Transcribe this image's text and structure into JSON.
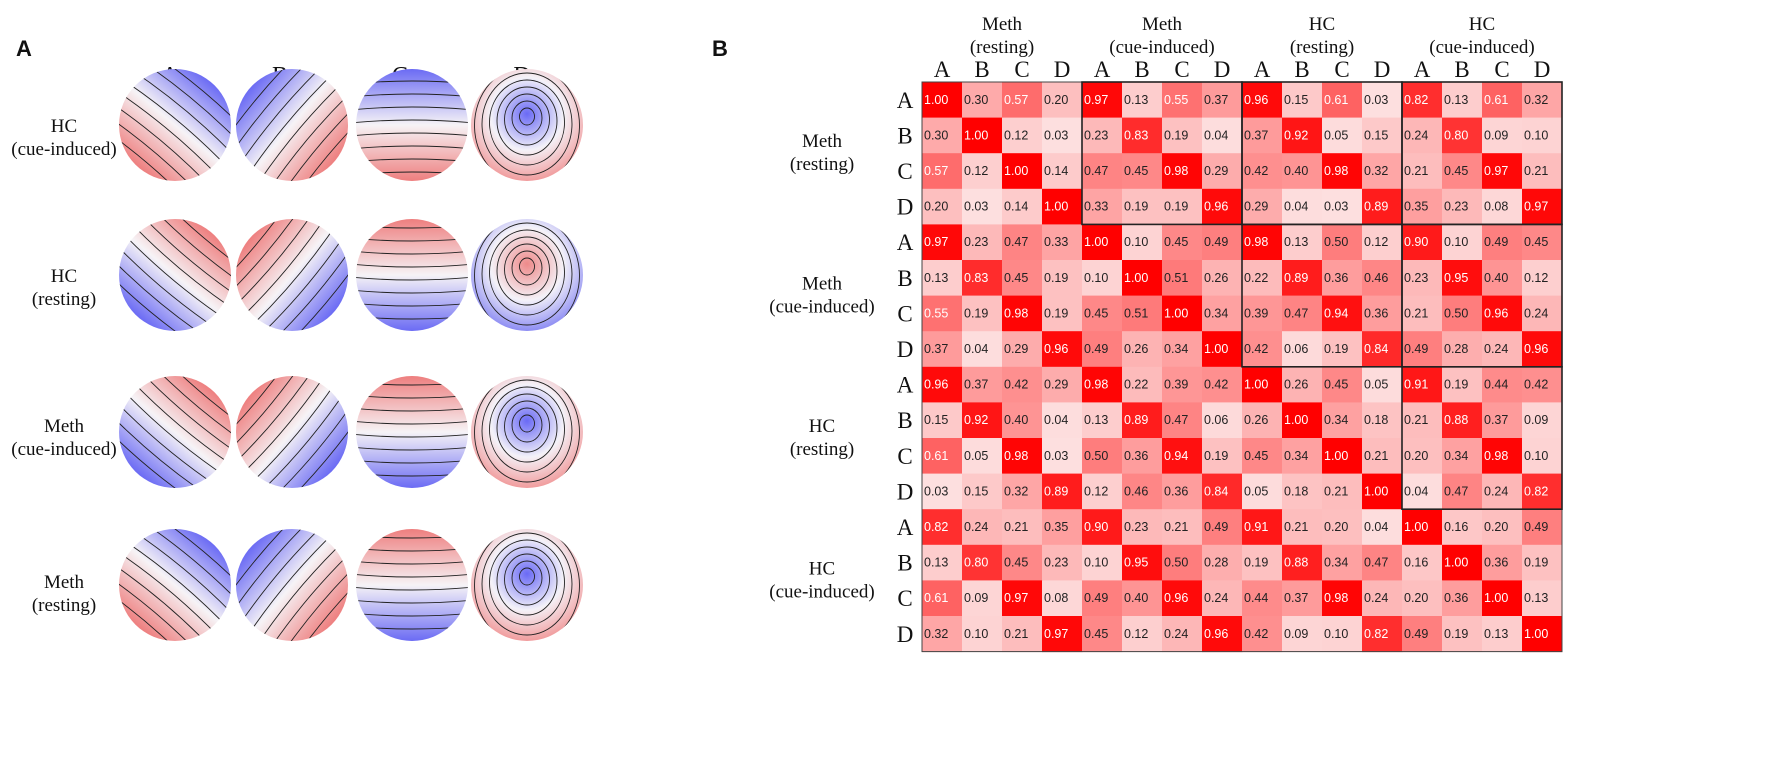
{
  "panel_labels": {
    "a": "A",
    "b": "B"
  },
  "panel_a": {
    "columns": [
      "A",
      "B",
      "C",
      "D"
    ],
    "rows": [
      {
        "line1": "HC",
        "line2": "(cue-induced)"
      },
      {
        "line1": "HC",
        "line2": "(resting)"
      },
      {
        "line1": "Meth",
        "line2": "(cue-induced)"
      },
      {
        "line1": "Meth",
        "line2": "(resting)"
      }
    ]
  },
  "chart_data": {
    "type": "heatmap",
    "title": "",
    "groups": [
      {
        "line1": "Meth",
        "line2": "(resting)"
      },
      {
        "line1": "Meth",
        "line2": "(cue-induced)"
      },
      {
        "line1": "HC",
        "line2": "(resting)"
      },
      {
        "line1": "HC",
        "line2": "(cue-induced)"
      }
    ],
    "components": [
      "A",
      "B",
      "C",
      "D"
    ],
    "value_range": [
      0,
      1
    ],
    "colorscale": {
      "low": "#fde3e3",
      "high": "#ff0000"
    },
    "values": [
      [
        1.0,
        0.3,
        0.57,
        0.2,
        0.97,
        0.13,
        0.55,
        0.37,
        0.96,
        0.15,
        0.61,
        0.03,
        0.82,
        0.13,
        0.61,
        0.32
      ],
      [
        0.3,
        1.0,
        0.12,
        0.03,
        0.23,
        0.83,
        0.19,
        0.04,
        0.37,
        0.92,
        0.05,
        0.15,
        0.24,
        0.8,
        0.09,
        0.1
      ],
      [
        0.57,
        0.12,
        1.0,
        0.14,
        0.47,
        0.45,
        0.98,
        0.29,
        0.42,
        0.4,
        0.98,
        0.32,
        0.21,
        0.45,
        0.97,
        0.21
      ],
      [
        0.2,
        0.03,
        0.14,
        1.0,
        0.33,
        0.19,
        0.19,
        0.96,
        0.29,
        0.04,
        0.03,
        0.89,
        0.35,
        0.23,
        0.08,
        0.97
      ],
      [
        0.97,
        0.23,
        0.47,
        0.33,
        1.0,
        0.1,
        0.45,
        0.49,
        0.98,
        0.13,
        0.5,
        0.12,
        0.9,
        0.1,
        0.49,
        0.45
      ],
      [
        0.13,
        0.83,
        0.45,
        0.19,
        0.1,
        1.0,
        0.51,
        0.26,
        0.22,
        0.89,
        0.36,
        0.46,
        0.23,
        0.95,
        0.4,
        0.12
      ],
      [
        0.55,
        0.19,
        0.98,
        0.19,
        0.45,
        0.51,
        1.0,
        0.34,
        0.39,
        0.47,
        0.94,
        0.36,
        0.21,
        0.5,
        0.96,
        0.24
      ],
      [
        0.37,
        0.04,
        0.29,
        0.96,
        0.49,
        0.26,
        0.34,
        1.0,
        0.42,
        0.06,
        0.19,
        0.84,
        0.49,
        0.28,
        0.24,
        0.96
      ],
      [
        0.96,
        0.37,
        0.42,
        0.29,
        0.98,
        0.22,
        0.39,
        0.42,
        1.0,
        0.26,
        0.45,
        0.05,
        0.91,
        0.19,
        0.44,
        0.42
      ],
      [
        0.15,
        0.92,
        0.4,
        0.04,
        0.13,
        0.89,
        0.47,
        0.06,
        0.26,
        1.0,
        0.34,
        0.18,
        0.21,
        0.88,
        0.37,
        0.09
      ],
      [
        0.61,
        0.05,
        0.98,
        0.03,
        0.5,
        0.36,
        0.94,
        0.19,
        0.45,
        0.34,
        1.0,
        0.21,
        0.2,
        0.34,
        0.98,
        0.1
      ],
      [
        0.03,
        0.15,
        0.32,
        0.89,
        0.12,
        0.46,
        0.36,
        0.84,
        0.05,
        0.18,
        0.21,
        1.0,
        0.04,
        0.47,
        0.24,
        0.82
      ],
      [
        0.82,
        0.24,
        0.21,
        0.35,
        0.9,
        0.23,
        0.21,
        0.49,
        0.91,
        0.21,
        0.2,
        0.04,
        1.0,
        0.16,
        0.2,
        0.49
      ],
      [
        0.13,
        0.8,
        0.45,
        0.23,
        0.1,
        0.95,
        0.5,
        0.28,
        0.19,
        0.88,
        0.34,
        0.47,
        0.16,
        1.0,
        0.36,
        0.19
      ],
      [
        0.61,
        0.09,
        0.97,
        0.08,
        0.49,
        0.4,
        0.96,
        0.24,
        0.44,
        0.37,
        0.98,
        0.24,
        0.2,
        0.36,
        1.0,
        0.13
      ],
      [
        0.32,
        0.1,
        0.21,
        0.97,
        0.45,
        0.12,
        0.24,
        0.96,
        0.42,
        0.09,
        0.1,
        0.82,
        0.49,
        0.19,
        0.13,
        1.0
      ]
    ]
  }
}
